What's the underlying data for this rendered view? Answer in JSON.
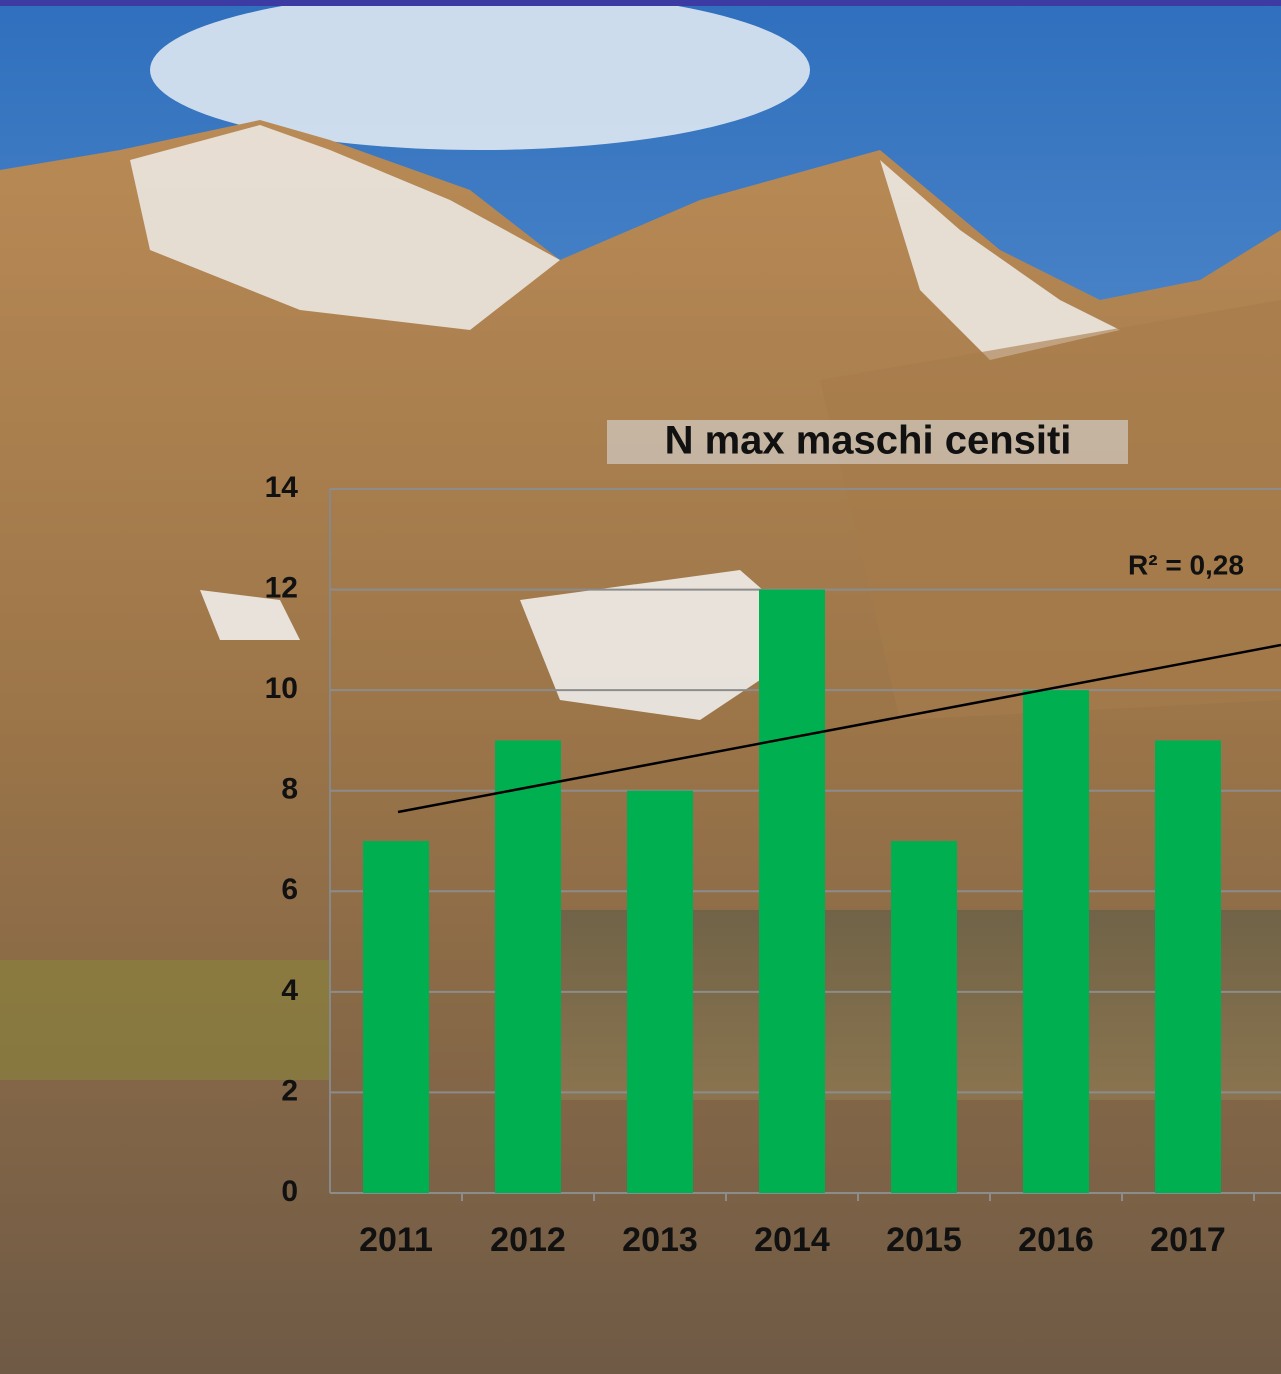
{
  "chart_data": {
    "type": "bar",
    "title": "N max maschi censiti",
    "categories": [
      "2011",
      "2012",
      "2013",
      "2014",
      "2015",
      "2016",
      "2017"
    ],
    "values": [
      7,
      9,
      8,
      12,
      7,
      10,
      9
    ],
    "color": "#00b050",
    "ylim": [
      0,
      14
    ],
    "yticks": [
      0,
      2,
      4,
      6,
      8,
      10,
      12,
      14
    ],
    "grid": true,
    "annotation": "R² = 0,28"
  }
}
